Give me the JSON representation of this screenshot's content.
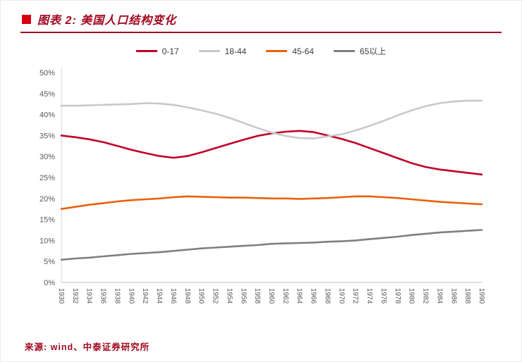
{
  "header": {
    "title": "图表 2: 美国人口结构变化",
    "accent_color": "#a2071f",
    "bullet_color": "#d7000f"
  },
  "footer": {
    "source": "来源: wind、中泰证券研究所"
  },
  "chart_data": {
    "type": "line",
    "title": "美国人口结构变化",
    "xlabel": "",
    "ylabel": "",
    "grid": false,
    "legend_position": "top",
    "ylim": [
      0,
      50
    ],
    "yticks": [
      {
        "v": 0,
        "label": "0%"
      },
      {
        "v": 5,
        "label": "5%"
      },
      {
        "v": 10,
        "label": "10%"
      },
      {
        "v": 15,
        "label": "15%"
      },
      {
        "v": 20,
        "label": "20%"
      },
      {
        "v": 25,
        "label": "25%"
      },
      {
        "v": 30,
        "label": "30%"
      },
      {
        "v": 35,
        "label": "35%"
      },
      {
        "v": 40,
        "label": "40%"
      },
      {
        "v": 45,
        "label": "45%"
      },
      {
        "v": 50,
        "label": "50%"
      }
    ],
    "x": [
      "1930",
      "1932",
      "1934",
      "1936",
      "1938",
      "1940",
      "1942",
      "1944",
      "1946",
      "1948",
      "1950",
      "1952",
      "1954",
      "1956",
      "1958",
      "1960",
      "1962",
      "1964",
      "1966",
      "1968",
      "1970",
      "1972",
      "1974",
      "1976",
      "1978",
      "1980",
      "1982",
      "1984",
      "1986",
      "1988",
      "1990"
    ],
    "series": [
      {
        "name": "0-17",
        "color": "#c00029",
        "values": [
          35.0,
          34.6,
          34.1,
          33.4,
          32.5,
          31.6,
          30.8,
          30.1,
          29.7,
          30.1,
          31.0,
          32.0,
          33.0,
          34.0,
          34.9,
          35.5,
          35.9,
          36.1,
          35.8,
          35.0,
          34.2,
          33.2,
          32.0,
          30.8,
          29.6,
          28.4,
          27.5,
          26.9,
          26.5,
          26.1,
          25.7
        ]
      },
      {
        "name": "18-44",
        "color": "#c9c9c9",
        "values": [
          42.1,
          42.1,
          42.2,
          42.3,
          42.4,
          42.5,
          42.7,
          42.6,
          42.3,
          41.7,
          41.0,
          40.2,
          39.2,
          38.0,
          36.8,
          35.7,
          34.9,
          34.4,
          34.3,
          34.8,
          35.3,
          36.2,
          37.3,
          38.5,
          39.8,
          41.0,
          42.0,
          42.7,
          43.1,
          43.3,
          43.3
        ]
      },
      {
        "name": "45-64",
        "color": "#e8610b",
        "values": [
          17.5,
          18.0,
          18.5,
          18.9,
          19.3,
          19.6,
          19.8,
          20.0,
          20.3,
          20.5,
          20.4,
          20.3,
          20.2,
          20.2,
          20.1,
          20.0,
          20.0,
          19.9,
          20.0,
          20.1,
          20.3,
          20.5,
          20.5,
          20.3,
          20.1,
          19.8,
          19.5,
          19.2,
          19.0,
          18.8,
          18.6
        ]
      },
      {
        "name": "65以上",
        "color": "#7f7f7f",
        "values": [
          5.4,
          5.7,
          5.9,
          6.2,
          6.5,
          6.8,
          7.0,
          7.2,
          7.5,
          7.8,
          8.1,
          8.3,
          8.5,
          8.7,
          8.9,
          9.2,
          9.3,
          9.4,
          9.5,
          9.7,
          9.8,
          10.0,
          10.3,
          10.6,
          10.9,
          11.3,
          11.6,
          11.9,
          12.1,
          12.3,
          12.5
        ]
      }
    ]
  }
}
